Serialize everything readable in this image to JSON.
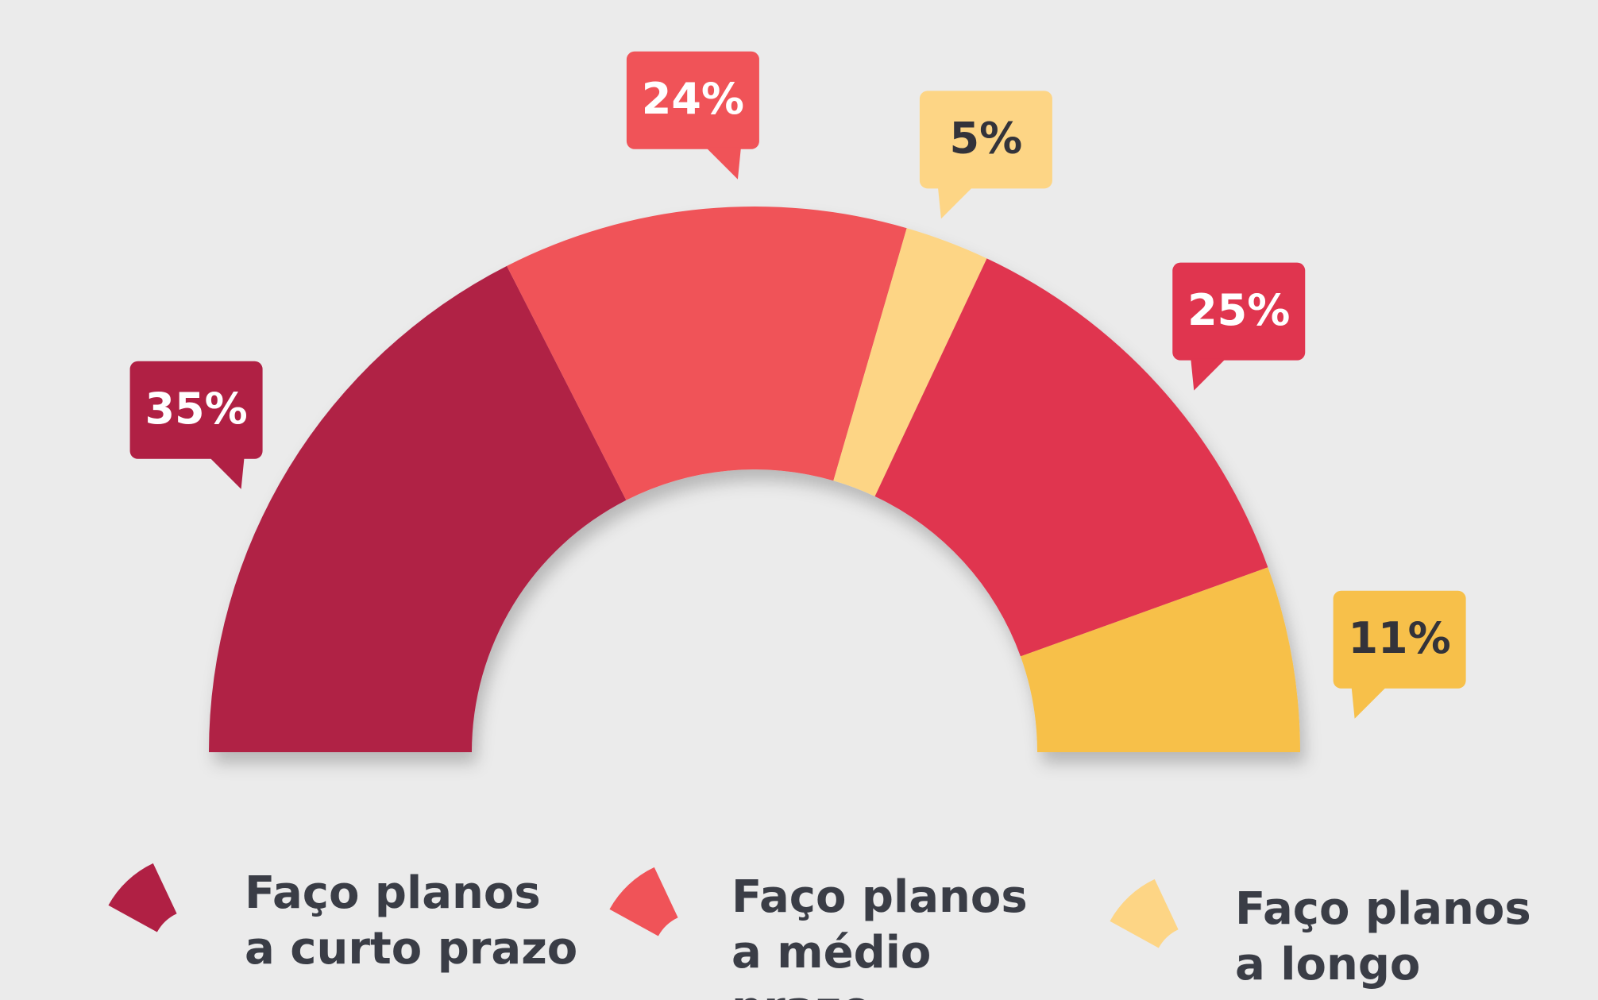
{
  "chart_data": {
    "type": "half-donut",
    "values": [
      35,
      24,
      5,
      25,
      11
    ],
    "value_labels": [
      "35%",
      "24%",
      "5%",
      "25%",
      "11%"
    ],
    "colors": [
      "#b02044",
      "#f05358",
      "#fdd585",
      "#e0354f",
      "#f7c04a"
    ],
    "legend": [
      {
        "label": "Faço planos a curto prazo",
        "color": "#b02044"
      },
      {
        "label": "Faço planos a médio prazo",
        "color": "#f05358"
      },
      {
        "label": "Faço planos a longo prazo",
        "color": "#fdd585"
      }
    ]
  }
}
